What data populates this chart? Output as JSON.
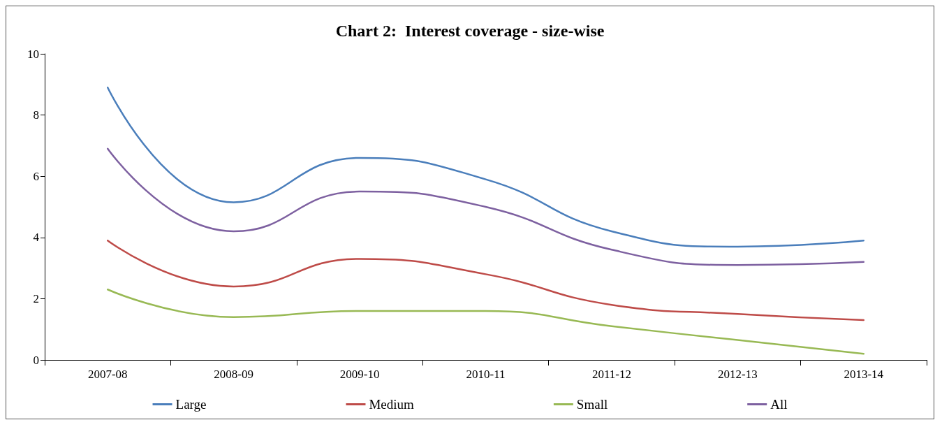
{
  "chart_data": {
    "type": "line",
    "title": "Chart 2:  Interest coverage - size-wise",
    "categories": [
      "2007-08",
      "2008-09",
      "2009-10",
      "2010-11",
      "2011-12",
      "2012-13",
      "2013-14"
    ],
    "series": [
      {
        "name": "Large",
        "color": "#4a7ebb",
        "values": [
          8.9,
          5.15,
          6.6,
          5.9,
          4.2,
          3.7,
          3.9
        ]
      },
      {
        "name": "Medium",
        "color": "#be4b48",
        "values": [
          3.9,
          2.4,
          3.3,
          2.8,
          1.8,
          1.5,
          1.3
        ]
      },
      {
        "name": "Small",
        "color": "#98b954",
        "values": [
          2.3,
          1.4,
          1.6,
          1.6,
          1.1,
          0.65,
          0.2
        ]
      },
      {
        "name": "All",
        "color": "#7d60a0",
        "values": [
          6.9,
          4.2,
          5.5,
          5.0,
          3.6,
          3.1,
          3.2
        ]
      }
    ],
    "ylim": [
      0,
      10
    ],
    "yticks": [
      0,
      2,
      4,
      6,
      8,
      10
    ],
    "grid": false,
    "legend": "bottom",
    "marker": "none",
    "line_style": "solid"
  }
}
